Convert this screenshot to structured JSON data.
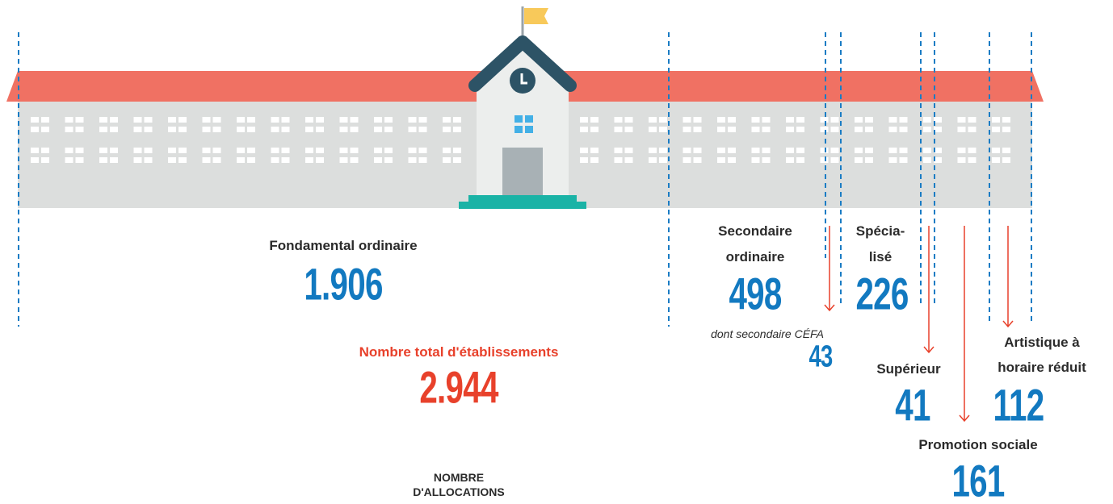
{
  "categories": [
    {
      "label_lines": [
        "Fondamental ordinaire"
      ],
      "value": "1.906"
    },
    {
      "label_lines": [
        "Secondaire",
        "ordinaire"
      ],
      "value": "498",
      "sub_label": "dont secondaire CÉFA",
      "sub_value": "43"
    },
    {
      "label_lines": [
        "Spécia-",
        "lisé"
      ],
      "value": "226"
    },
    {
      "label_lines": [
        "Supérieur"
      ],
      "value": "41"
    },
    {
      "label_lines": [
        "Artistique à",
        "horaire réduit"
      ],
      "value": "112"
    },
    {
      "label_lines": [
        "Promotion sociale"
      ],
      "value": "161"
    }
  ],
  "total": {
    "label": "Nombre total d'établissements",
    "value": "2.944"
  },
  "footer_lines": [
    "NOMBRE",
    "D'ALLOCATIONS"
  ]
}
